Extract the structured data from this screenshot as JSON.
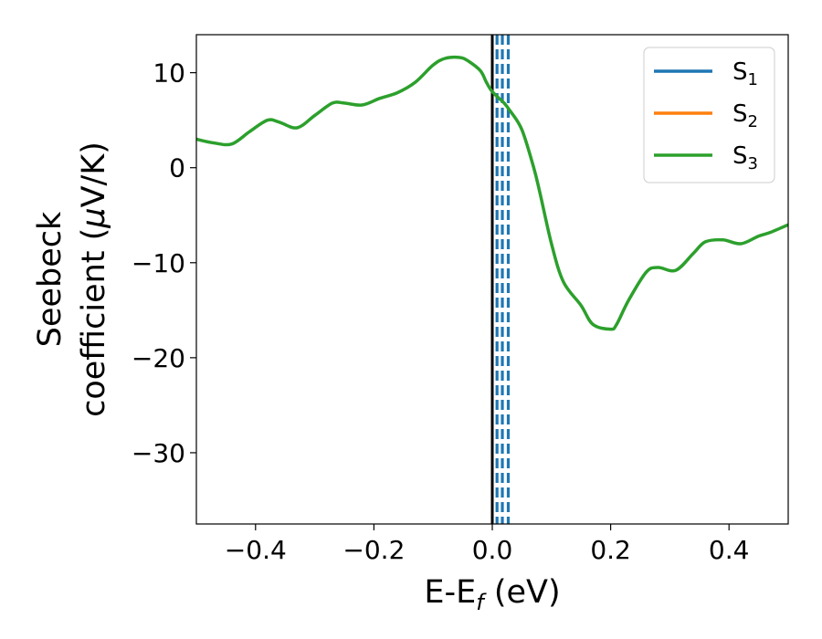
{
  "chart_data": {
    "type": "line",
    "xlabel": {
      "main": "E-E",
      "sub": "f",
      "tail": " (eV)"
    },
    "ylabel": {
      "line1": "Seebeck",
      "line2a": "coefficient  (",
      "mu": "μ",
      "line2b": "V/K)"
    },
    "xlim": [
      -0.5,
      0.5
    ],
    "ylim": [
      -37.5,
      14
    ],
    "xticks": [
      -0.4,
      -0.2,
      0.0,
      0.2,
      0.4
    ],
    "xtick_labels": [
      "−0.4",
      "−0.2",
      "0.0",
      "0.2",
      "0.4"
    ],
    "yticks": [
      10,
      0,
      -10,
      -20,
      -30
    ],
    "ytick_labels": [
      "10",
      "0",
      "−10",
      "−20",
      "−30"
    ],
    "grid": false,
    "legend_position": "top-right",
    "series": [
      {
        "name": "S",
        "subscript": "1",
        "color": "#1f77b4",
        "x": [],
        "y": []
      },
      {
        "name": "S",
        "subscript": "2",
        "color": "#ff7f0e",
        "x": [],
        "y": []
      },
      {
        "name": "S",
        "subscript": "3",
        "color": "#2ca02c",
        "x": [
          -0.5,
          -0.47,
          -0.44,
          -0.41,
          -0.38,
          -0.36,
          -0.33,
          -0.3,
          -0.27,
          -0.25,
          -0.22,
          -0.19,
          -0.16,
          -0.13,
          -0.1,
          -0.08,
          -0.055,
          -0.04,
          -0.02,
          -0.01,
          0.0,
          0.02,
          0.03,
          0.05,
          0.07,
          0.08,
          0.1,
          0.12,
          0.15,
          0.17,
          0.2,
          0.21,
          0.23,
          0.26,
          0.28,
          0.31,
          0.34,
          0.36,
          0.39,
          0.42,
          0.45,
          0.47,
          0.5
        ],
        "y": [
          3.0,
          2.6,
          2.5,
          3.8,
          5.0,
          4.8,
          4.2,
          5.5,
          6.8,
          6.8,
          6.6,
          7.3,
          7.9,
          9.0,
          10.8,
          11.5,
          11.6,
          11.2,
          10.2,
          9.0,
          8.0,
          6.8,
          6.0,
          4.0,
          0.0,
          -2.5,
          -8.0,
          -12.0,
          -14.5,
          -16.5,
          -17.0,
          -16.5,
          -14.0,
          -11.0,
          -10.5,
          -10.8,
          -9.0,
          -7.8,
          -7.6,
          -8.0,
          -7.2,
          -6.8,
          -6.0
        ]
      }
    ],
    "vlines": [
      {
        "x": 0.0,
        "style": "solid",
        "color": "#000000"
      },
      {
        "x": 0.008,
        "style": "dashed",
        "color": "#1f77b4"
      },
      {
        "x": 0.017,
        "style": "dashed",
        "color": "#1f77b4"
      },
      {
        "x": 0.027,
        "style": "dashed",
        "color": "#1f77b4"
      }
    ]
  }
}
